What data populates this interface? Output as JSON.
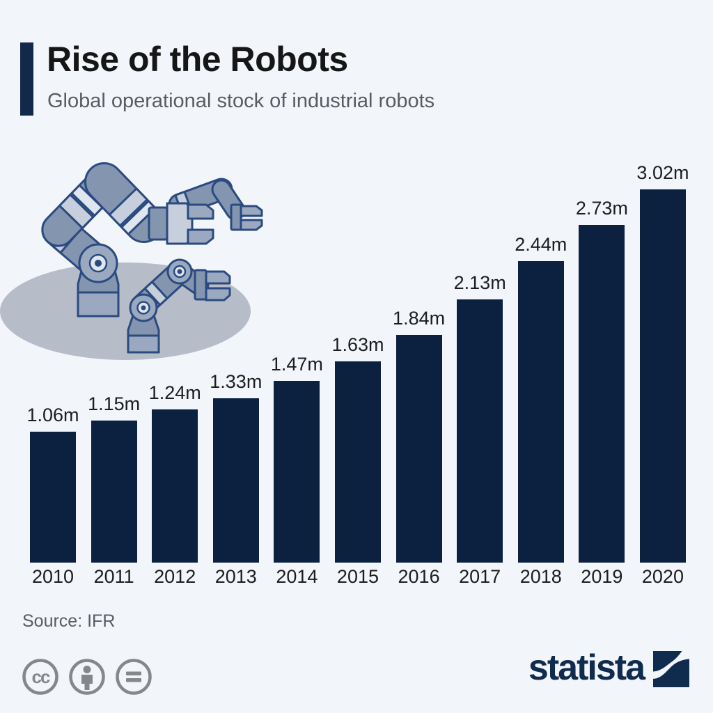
{
  "header": {
    "title": "Rise of the Robots",
    "subtitle": "Global operational stock of industrial robots"
  },
  "chart_data": {
    "type": "bar",
    "title": "Rise of the Robots",
    "subtitle": "Global operational stock of industrial robots",
    "categories": [
      "2010",
      "2011",
      "2012",
      "2013",
      "2014",
      "2015",
      "2016",
      "2017",
      "2018",
      "2019",
      "2020"
    ],
    "values": [
      1.06,
      1.15,
      1.24,
      1.33,
      1.47,
      1.63,
      1.84,
      2.13,
      2.44,
      2.73,
      3.02
    ],
    "value_labels": [
      "1.06m",
      "1.15m",
      "1.24m",
      "1.33m",
      "1.47m",
      "1.63m",
      "1.84m",
      "2.13m",
      "2.44m",
      "2.73m",
      "3.02m"
    ],
    "unit": "millions of robots",
    "xlabel": "",
    "ylabel": "",
    "ylim": [
      0,
      3.02
    ],
    "grid": false,
    "legend": "none",
    "bar_color": "#0c2040",
    "data_labels_position": "above bars"
  },
  "illustration": {
    "name": "industrial-robot-arms"
  },
  "footer": {
    "source": "Source: IFR",
    "license_icons": [
      "cc",
      "attribution",
      "no-derivatives"
    ],
    "brand": "statista"
  },
  "colors": {
    "background": "#f2f5fa",
    "bar": "#0c2040",
    "accent_bar": "#13294b",
    "title_text": "#161616",
    "subtitle_text": "#585c61",
    "brand_navy": "#0f2b4d",
    "license_icon_gray": "#85888b",
    "robot_main": "#8495af",
    "robot_light": "#c6cfdb",
    "robot_outline": "#2b4a80",
    "shadow_ellipse": "#b6bdc8"
  }
}
